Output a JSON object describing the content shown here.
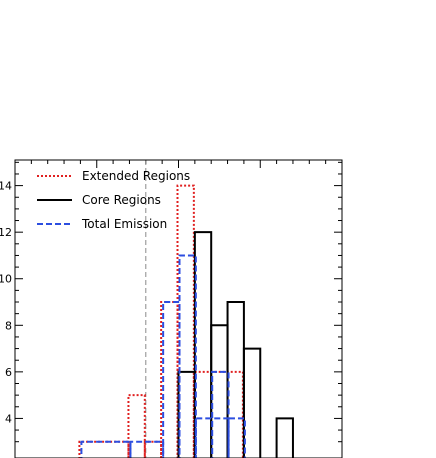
{
  "chart_data": {
    "type": "histogram",
    "y_ticks": [
      4,
      6,
      8,
      10,
      12,
      14
    ],
    "ylim": [
      2.3,
      15.1
    ],
    "xlim": [
      0,
      20
    ],
    "reference_line_x": 8,
    "grid": false,
    "legend_position": "top-left",
    "series": [
      {
        "name": "Extended Regions",
        "color": "#e02020",
        "style": "dotted",
        "steps": [
          {
            "x0": 4,
            "x1": 7,
            "y": 3
          },
          {
            "x0": 7,
            "x1": 8,
            "y": 5
          },
          {
            "x0": 8,
            "x1": 9,
            "y": 3
          },
          {
            "x0": 9,
            "x1": 10,
            "y": 9
          },
          {
            "x0": 10,
            "x1": 11,
            "y": 14
          },
          {
            "x0": 11,
            "x1": 14,
            "y": 6
          }
        ]
      },
      {
        "name": "Core Regions",
        "color": "#000000",
        "style": "solid",
        "steps": [
          {
            "x0": 10,
            "x1": 11,
            "y": 6
          },
          {
            "x0": 11,
            "x1": 12,
            "y": 12
          },
          {
            "x0": 12,
            "x1": 13,
            "y": 8
          },
          {
            "x0": 13,
            "x1": 14,
            "y": 9
          },
          {
            "x0": 14,
            "x1": 15,
            "y": 7
          },
          {
            "x0": 16,
            "x1": 17,
            "y": 4
          }
        ]
      },
      {
        "name": "Total Emission",
        "color": "#2c4ee0",
        "style": "dashed",
        "steps": [
          {
            "x0": 4,
            "x1": 7,
            "y": 3
          },
          {
            "x0": 7,
            "x1": 9,
            "y": 3
          },
          {
            "x0": 9,
            "x1": 10,
            "y": 9
          },
          {
            "x0": 10,
            "x1": 11,
            "y": 11
          },
          {
            "x0": 11,
            "x1": 13,
            "y": 4
          },
          {
            "x0": 12,
            "x1": 13,
            "y": 6
          },
          {
            "x0": 13,
            "x1": 14,
            "y": 4
          }
        ]
      }
    ]
  }
}
